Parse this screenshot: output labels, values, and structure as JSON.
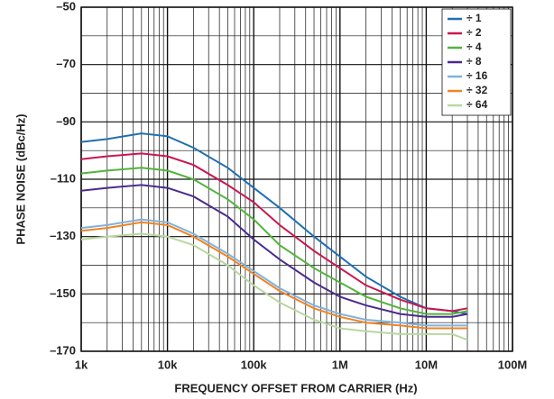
{
  "chart_data": {
    "type": "line",
    "xlabel": "FREQUENCY OFFSET FROM CARRIER (Hz)",
    "ylabel": "PHASE NOISE (dBc/Hz)",
    "log_x": true,
    "grid": true,
    "legend": "upper right",
    "xlim": [
      1000,
      100000000
    ],
    "xticks": [
      {
        "value": 1000,
        "label": "1k"
      },
      {
        "value": 10000,
        "label": "10k"
      },
      {
        "value": 100000,
        "label": "100k"
      },
      {
        "value": 1000000,
        "label": "1M"
      },
      {
        "value": 10000000,
        "label": "10M"
      },
      {
        "value": 100000000,
        "label": "100M"
      }
    ],
    "ylim": [
      -170,
      -50
    ],
    "yticks": [
      {
        "value": -50,
        "label": "–50"
      },
      {
        "value": -70,
        "label": "–70"
      },
      {
        "value": -90,
        "label": "–90"
      },
      {
        "value": -110,
        "label": "–110"
      },
      {
        "value": -130,
        "label": "–130"
      },
      {
        "value": -150,
        "label": "–150"
      },
      {
        "value": -170,
        "label": "–170"
      }
    ],
    "x": [
      1000,
      2000,
      5000,
      10000,
      20000,
      50000,
      100000,
      200000,
      500000,
      1000000,
      2000000,
      5000000,
      10000000,
      20000000,
      30000000
    ],
    "series": [
      {
        "name": "÷ 1",
        "color": "#1f6fb2",
        "values": [
          -97,
          -96,
          -94,
          -95,
          -99,
          -106,
          -113,
          -120,
          -130,
          -137,
          -144,
          -151,
          -155,
          -156,
          -157
        ]
      },
      {
        "name": "÷ 2",
        "color": "#c8174f",
        "values": [
          -103,
          -102,
          -101,
          -102,
          -105,
          -112,
          -118,
          -126,
          -135,
          -141,
          -147,
          -152,
          -155,
          -156,
          -155
        ]
      },
      {
        "name": "÷ 4",
        "color": "#52b43a",
        "values": [
          -108,
          -107,
          -106,
          -107,
          -110,
          -117,
          -124,
          -133,
          -141,
          -146,
          -151,
          -155,
          -157,
          -157,
          -156
        ]
      },
      {
        "name": "÷ 8",
        "color": "#4a2b8f",
        "values": [
          -114,
          -113,
          -112,
          -113,
          -116,
          -123,
          -131,
          -138,
          -146,
          -151,
          -154,
          -157,
          -158,
          -158,
          -157
        ]
      },
      {
        "name": "÷ 16",
        "color": "#7fb2dc",
        "values": [
          -127,
          -126,
          -124,
          -125,
          -129,
          -136,
          -142,
          -148,
          -154,
          -157,
          -159,
          -160,
          -161,
          -161,
          -161
        ]
      },
      {
        "name": "÷ 32",
        "color": "#f08424",
        "values": [
          -128,
          -127,
          -125,
          -126,
          -130,
          -137,
          -143,
          -149,
          -155,
          -158,
          -160,
          -161,
          -162,
          -162,
          -162
        ]
      },
      {
        "name": "÷ 64",
        "color": "#b9d7a0",
        "values": [
          -131,
          -130,
          -129,
          -130,
          -133,
          -140,
          -147,
          -153,
          -159,
          -162,
          -163,
          -164,
          -164,
          -164,
          -166
        ]
      }
    ]
  }
}
